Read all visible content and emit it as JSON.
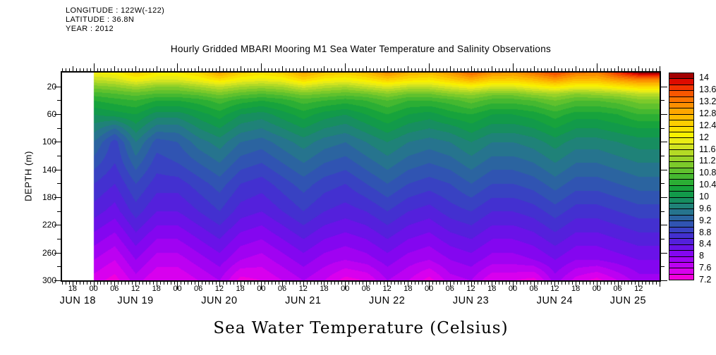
{
  "header": {
    "longitude": "LONGITUDE : 122W(-122)",
    "latitude": "LATITUDE : 36.8N",
    "year": "YEAR : 2012"
  },
  "title": "Hourly Gridded MBARI Mooring M1 Sea Water Temperature and Salinity Observations",
  "bottom_title": "Sea Water Temperature (Celsius)",
  "chart_data": {
    "type": "heatmap",
    "title": "Hourly Gridded MBARI Mooring M1 Sea Water Temperature and Salinity Observations",
    "variable": "Sea Water Temperature (Celsius)",
    "grid_on": false,
    "x_axis": {
      "start": "2012-06-18 15:00",
      "end": "2012-06-25 18:00",
      "total_hours": 171,
      "hour_label_step_hours": 6,
      "first_hour_label_offset": 3,
      "hour_tick_labels": [
        "18",
        "00",
        "06",
        "12",
        "18",
        "00",
        "06",
        "12",
        "18",
        "00",
        "06",
        "12",
        "18",
        "00",
        "06",
        "12",
        "18",
        "00",
        "06",
        "12",
        "18",
        "00",
        "06",
        "12",
        "18",
        "00",
        "06",
        "12"
      ],
      "day_labels": [
        "JUN 18",
        "JUN 19",
        "JUN 20",
        "JUN 21",
        "JUN 22",
        "JUN 23",
        "JUN 24",
        "JUN 25"
      ]
    },
    "y_axis": {
      "label": "DEPTH (m)",
      "min": 0,
      "max": 300,
      "major_tick_labels": [
        "20",
        "60",
        "100",
        "140",
        "180",
        "220",
        "260",
        "300"
      ],
      "major_step": 40,
      "minor_step": 20
    },
    "colorbar": {
      "min": 7.2,
      "max": 14.2,
      "step": 0.2,
      "tick_labels": [
        "14",
        "13.6",
        "13.2",
        "12.8",
        "12.4",
        "12",
        "11.6",
        "11.2",
        "10.8",
        "10.4",
        "10",
        "9.6",
        "9.2",
        "8.8",
        "8.4",
        "8",
        "7.6",
        "7.2"
      ],
      "colors": [
        "#F000DC",
        "#D800EE",
        "#BC01F2",
        "#A002F2",
        "#8406F0",
        "#6A12E8",
        "#5420DC",
        "#4330D0",
        "#3842C2",
        "#3054B2",
        "#2B64A0",
        "#26748E",
        "#1F8278",
        "#178E60",
        "#129A4A",
        "#17A33C",
        "#2BAE34",
        "#45B830",
        "#60C12D",
        "#7CCA2A",
        "#98D228",
        "#B4DA25",
        "#D0E321",
        "#EAEC14",
        "#F8F000",
        "#FBE000",
        "#FCCE00",
        "#FDBB00",
        "#FDA600",
        "#FC8F00",
        "#FA7500",
        "#F75700",
        "#F23300",
        "#DE0B00",
        "#A30000"
      ]
    },
    "data_start": "2012-06-19 00:00",
    "data_start_offset_hours": 9,
    "grid": {
      "time_hours_from_data_start": [
        0,
        6,
        12,
        18,
        24,
        30,
        36,
        42,
        48,
        54,
        60,
        66,
        72,
        78,
        84,
        90,
        96,
        102,
        108,
        114,
        120,
        126,
        132,
        138,
        144,
        150,
        156
      ],
      "depths_m": [
        0,
        10,
        20,
        30,
        40,
        60,
        80,
        100,
        130,
        160,
        200,
        240,
        270,
        300
      ],
      "temperature_c": [
        [
          12.0,
          12.1,
          12.5,
          12.2,
          12.2,
          12.4,
          12.9,
          12.5,
          12.3,
          12.5,
          12.9,
          12.6,
          12.5,
          12.7,
          13.1,
          12.8,
          12.7,
          13.0,
          13.4,
          13.1,
          13.0,
          13.3,
          13.6,
          13.3,
          13.2,
          13.7,
          14.1
        ],
        [
          11.6,
          11.7,
          12.0,
          11.8,
          11.8,
          12.0,
          12.3,
          12.0,
          11.9,
          12.0,
          12.4,
          12.1,
          12.0,
          12.2,
          12.5,
          12.3,
          12.2,
          12.5,
          12.8,
          12.5,
          12.5,
          12.7,
          13.0,
          12.7,
          12.7,
          13.0,
          13.2
        ],
        [
          11.1,
          11.2,
          11.4,
          11.2,
          11.2,
          11.4,
          11.6,
          11.4,
          11.3,
          11.4,
          11.7,
          11.5,
          11.4,
          11.6,
          11.8,
          11.6,
          11.6,
          11.8,
          12.0,
          11.8,
          11.8,
          12.0,
          12.2,
          12.0,
          12.0,
          12.2,
          12.4
        ],
        [
          10.7,
          10.8,
          10.9,
          10.8,
          10.8,
          10.9,
          11.1,
          10.9,
          10.8,
          10.9,
          11.1,
          11.0,
          10.9,
          11.0,
          11.2,
          11.0,
          11.0,
          11.2,
          11.3,
          11.1,
          11.1,
          11.3,
          11.4,
          11.2,
          11.3,
          11.4,
          11.6
        ],
        [
          10.4,
          10.5,
          10.6,
          10.4,
          10.4,
          10.5,
          10.7,
          10.5,
          10.4,
          10.5,
          10.7,
          10.6,
          10.5,
          10.6,
          10.8,
          10.6,
          10.6,
          10.7,
          10.9,
          10.7,
          10.7,
          10.8,
          11.0,
          10.8,
          10.8,
          10.9,
          11.1
        ],
        [
          10.0,
          10.1,
          10.2,
          9.9,
          9.9,
          10.1,
          10.3,
          10.0,
          9.9,
          10.1,
          10.3,
          10.1,
          10.0,
          10.2,
          10.4,
          10.2,
          10.1,
          10.3,
          10.4,
          10.2,
          10.2,
          10.3,
          10.5,
          10.3,
          10.3,
          10.4,
          10.6
        ],
        [
          9.7,
          9.4,
          9.9,
          9.5,
          9.5,
          9.8,
          10.0,
          9.7,
          9.6,
          9.8,
          10.0,
          9.8,
          9.7,
          9.9,
          10.1,
          9.9,
          9.8,
          9.9,
          10.1,
          9.9,
          9.9,
          10.0,
          10.2,
          10.0,
          10.0,
          10.1,
          10.2
        ],
        [
          9.4,
          8.9,
          9.6,
          9.1,
          9.2,
          9.5,
          9.7,
          9.4,
          9.3,
          9.5,
          9.7,
          9.5,
          9.4,
          9.6,
          9.8,
          9.6,
          9.5,
          9.6,
          9.8,
          9.6,
          9.6,
          9.7,
          9.9,
          9.7,
          9.7,
          9.8,
          9.9
        ],
        [
          9.1,
          8.8,
          9.3,
          8.9,
          9.0,
          9.2,
          9.4,
          9.1,
          9.0,
          9.2,
          9.4,
          9.2,
          9.1,
          9.3,
          9.5,
          9.3,
          9.2,
          9.3,
          9.5,
          9.3,
          9.3,
          9.4,
          9.6,
          9.4,
          9.4,
          9.5,
          9.6
        ],
        [
          8.8,
          8.6,
          9.0,
          8.7,
          8.7,
          8.9,
          9.1,
          8.8,
          8.7,
          8.9,
          9.1,
          8.9,
          8.8,
          9.0,
          9.2,
          9.0,
          8.9,
          9.0,
          9.2,
          9.0,
          9.0,
          9.1,
          9.3,
          9.1,
          9.1,
          9.2,
          9.3
        ],
        [
          8.5,
          8.3,
          8.7,
          8.4,
          8.4,
          8.6,
          8.8,
          8.5,
          8.4,
          8.6,
          8.8,
          8.6,
          8.5,
          8.6,
          8.8,
          8.6,
          8.5,
          8.7,
          8.8,
          8.6,
          8.6,
          8.7,
          8.9,
          8.7,
          8.7,
          8.8,
          8.9
        ],
        [
          8.1,
          7.9,
          8.3,
          8.0,
          8.0,
          8.2,
          8.4,
          8.1,
          8.0,
          8.2,
          8.4,
          8.2,
          8.1,
          8.2,
          8.4,
          8.2,
          8.1,
          8.3,
          8.4,
          8.2,
          8.2,
          8.3,
          8.5,
          8.3,
          8.3,
          8.4,
          8.5
        ],
        [
          7.8,
          7.6,
          8.0,
          7.7,
          7.7,
          7.9,
          8.1,
          7.8,
          7.7,
          7.9,
          8.1,
          7.9,
          7.8,
          7.9,
          8.1,
          7.9,
          7.8,
          8.0,
          8.1,
          7.9,
          7.9,
          8.0,
          8.2,
          8.0,
          8.0,
          8.1,
          8.2
        ],
        [
          7.5,
          7.3,
          7.7,
          7.4,
          7.4,
          7.6,
          7.8,
          7.3,
          7.4,
          7.6,
          7.8,
          7.6,
          7.3,
          7.4,
          7.8,
          7.6,
          7.3,
          7.7,
          7.8,
          7.4,
          7.4,
          7.3,
          7.9,
          7.5,
          7.3,
          7.6,
          7.9
        ]
      ]
    }
  }
}
